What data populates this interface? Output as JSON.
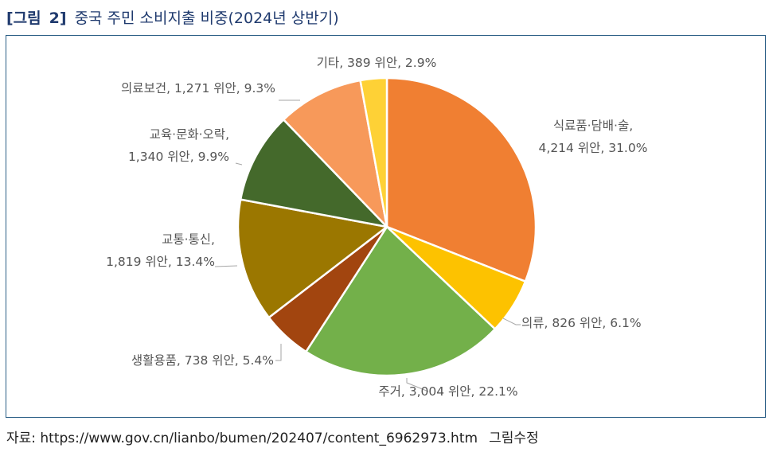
{
  "figure": {
    "tag_prefix": "[그림",
    "tag_number": "2]",
    "title": "중국 주민 소비지출 비중(2024년 상반기)"
  },
  "source": {
    "text": "자료:  https://www.gov.cn/lianbo/bumen/202407/content_6962973.htm",
    "note": "그림수정"
  },
  "chart_data": {
    "type": "pie",
    "unit": "위안",
    "start_angle_deg": 0,
    "direction": "clockwise",
    "slices": [
      {
        "label": "식료품·담배·술",
        "value": 4214,
        "percent": 31.0,
        "color": "#f07f32",
        "text_lines": [
          "식료품·담배·술,",
          "4,214 위안, 31.0%"
        ]
      },
      {
        "label": "의류",
        "value": 826,
        "percent": 6.1,
        "color": "#fdc200",
        "text_lines": [
          "의류, 826 위안, 6.1%"
        ]
      },
      {
        "label": "주거",
        "value": 3004,
        "percent": 22.1,
        "color": "#73b04a",
        "text_lines": [
          "주거, 3,004 위안, 22.1%"
        ]
      },
      {
        "label": "생활용품",
        "value": 738,
        "percent": 5.4,
        "color": "#a2450f",
        "text_lines": [
          "생활용품, 738 위안, 5.4%"
        ]
      },
      {
        "label": "교통·통신",
        "value": 1819,
        "percent": 13.4,
        "color": "#9b7700",
        "text_lines": [
          "교통·통신,",
          "1,819 위안, 13.4%"
        ]
      },
      {
        "label": "교육·문화·오락",
        "value": 1340,
        "percent": 9.9,
        "color": "#44692b",
        "text_lines": [
          "교육·문화·오락,",
          "1,340 위안, 9.9%"
        ]
      },
      {
        "label": "의료보건",
        "value": 1271,
        "percent": 9.3,
        "color": "#f7995a",
        "text_lines": [
          "의료보건, 1,271 위안, 9.3%"
        ]
      },
      {
        "label": "기타",
        "value": 389,
        "percent": 2.9,
        "color": "#fed136",
        "text_lines": [
          "기타, 389 위안, 2.9%"
        ]
      }
    ]
  }
}
